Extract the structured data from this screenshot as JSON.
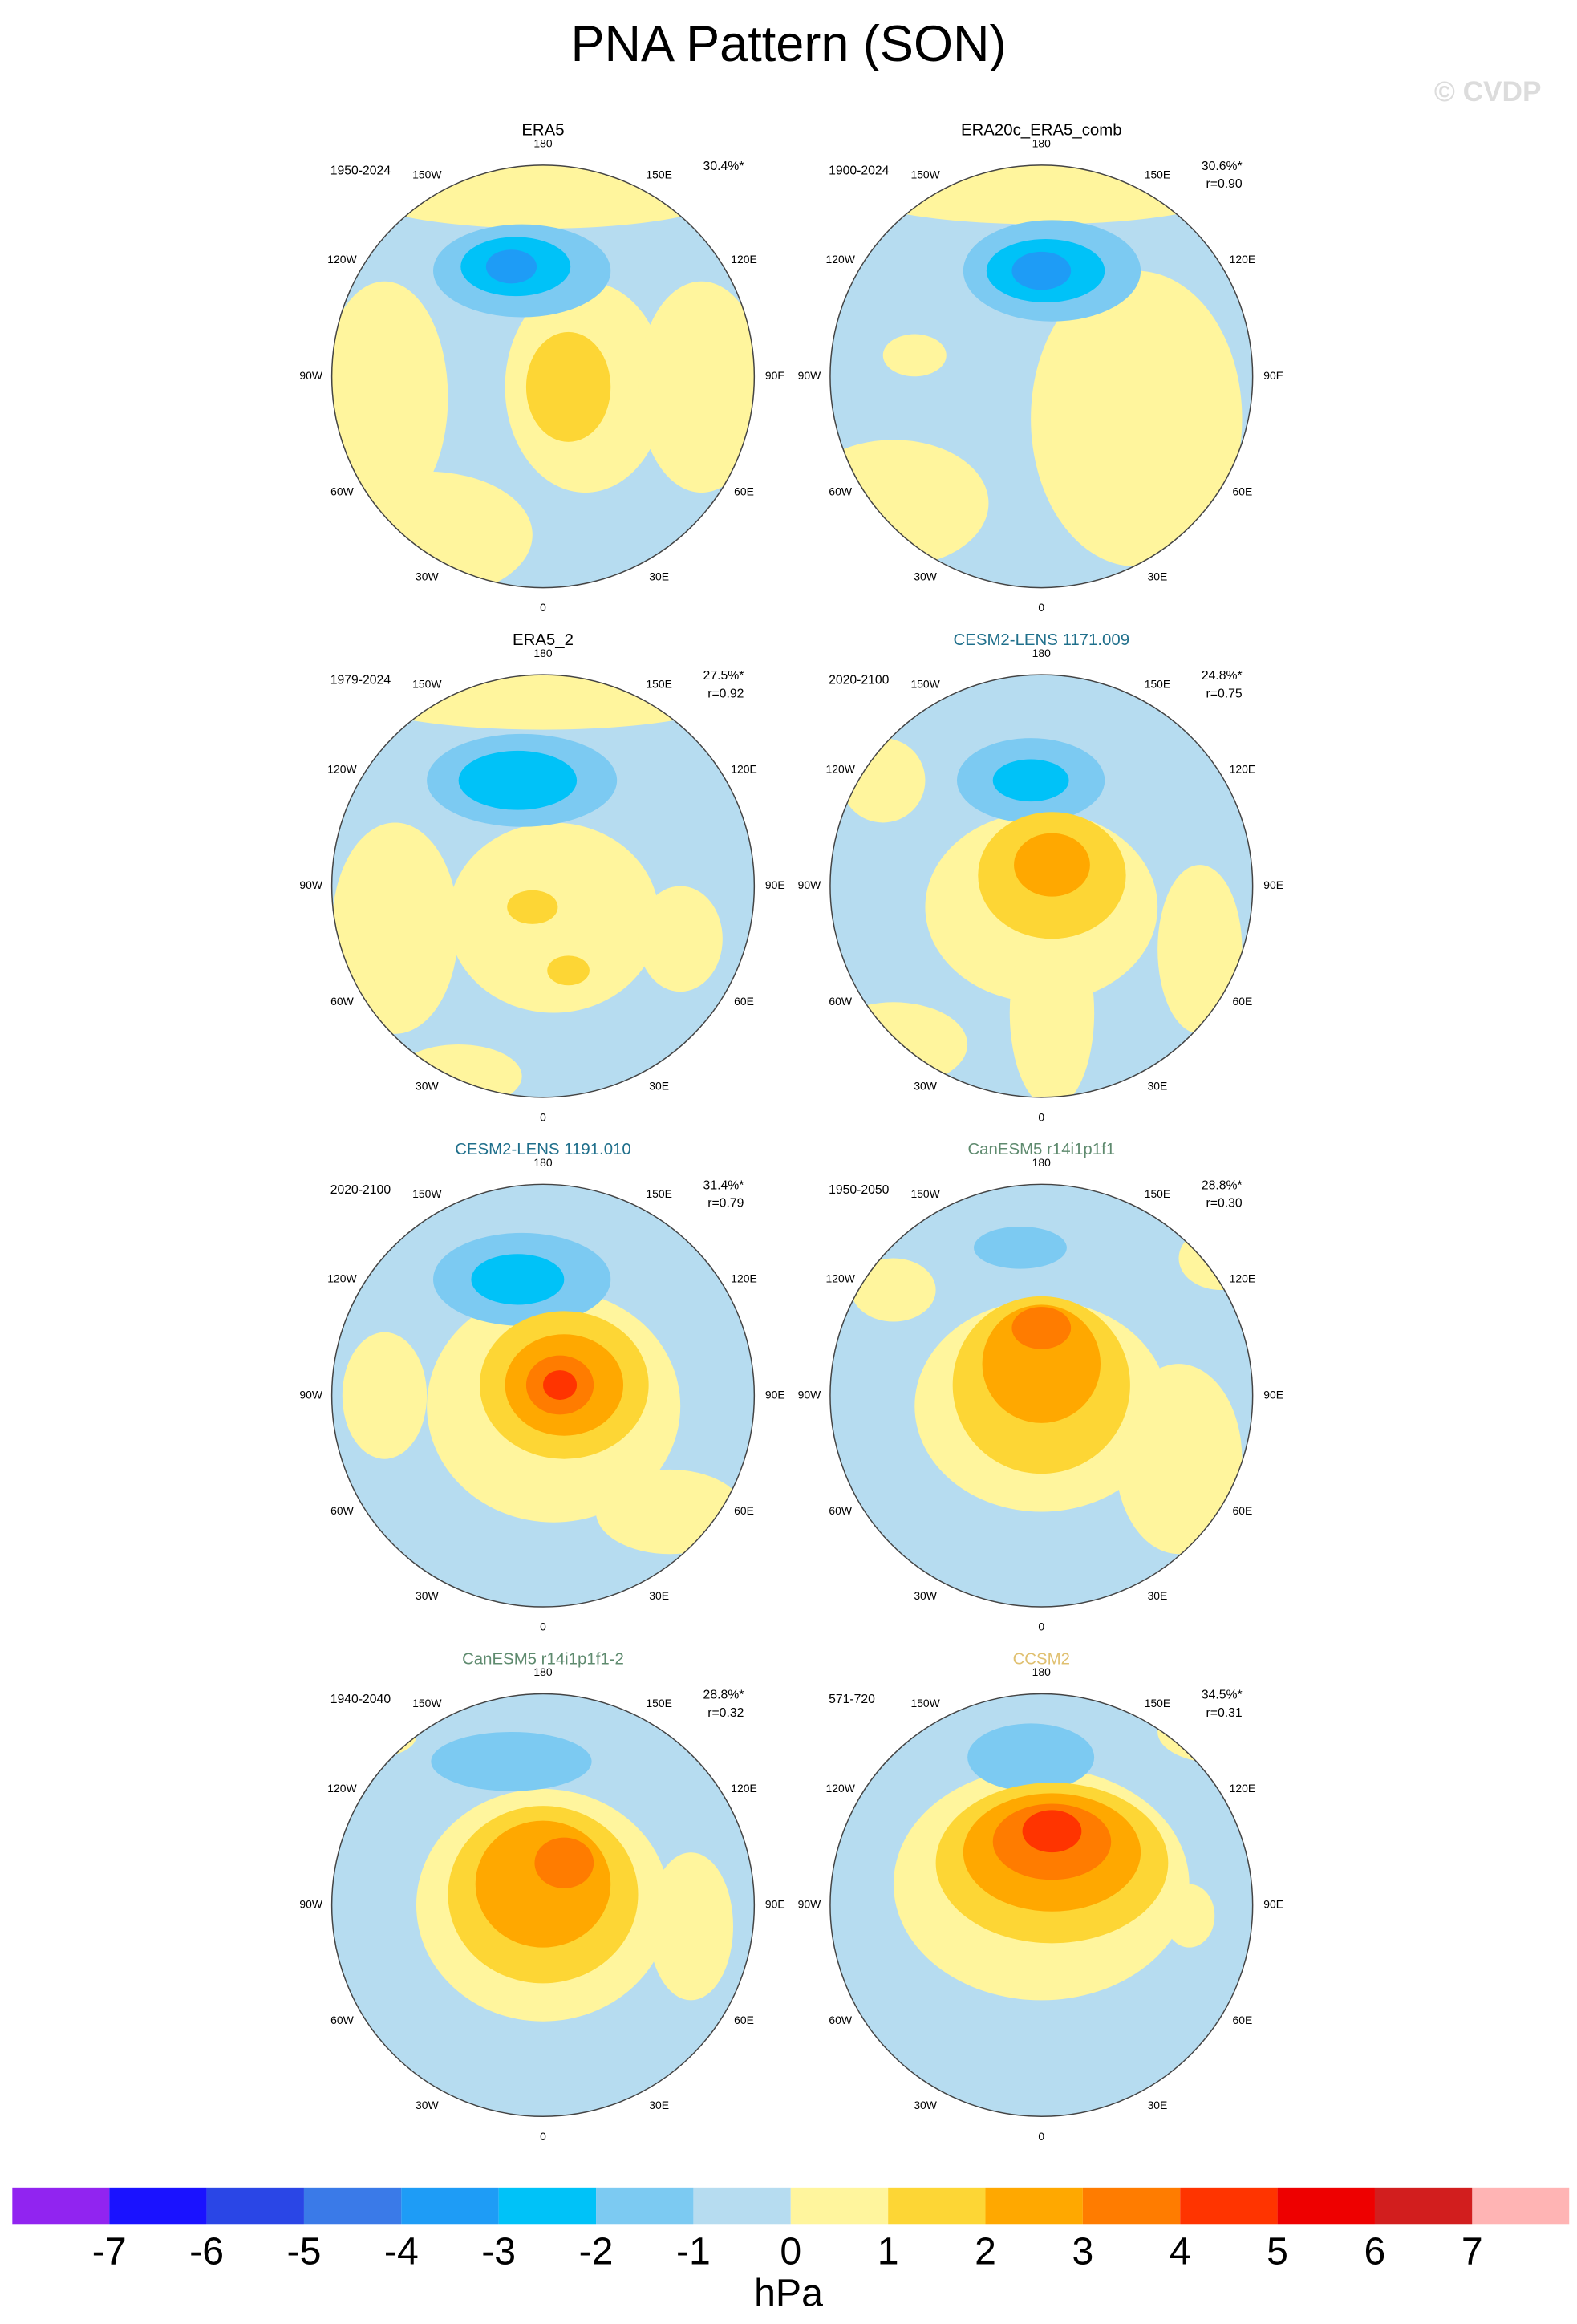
{
  "title": "PNA Pattern (SON)",
  "credit": "© CVDP",
  "lon_labels": [
    "180",
    "150E",
    "120E",
    "90E",
    "60E",
    "30E",
    "0",
    "30W",
    "60W",
    "90W",
    "120W",
    "150W"
  ],
  "panels": [
    {
      "title": "ERA5",
      "title_color": "#000000",
      "period": "1950-2024",
      "pct": "30.4%*"
    },
    {
      "title": "ERA20c_ERA5_comb",
      "title_color": "#000000",
      "period": "1900-2024",
      "pct": "30.6%*",
      "r": "r=0.90"
    },
    {
      "title": "ERA5_2",
      "title_color": "#000000",
      "period": "1979-2024",
      "pct": "27.5%*",
      "r": "r=0.92"
    },
    {
      "title": "CESM2-LENS 1171.009",
      "title_color": "#1f6f8b",
      "period": "2020-2100",
      "pct": "24.8%*",
      "r": "r=0.75"
    },
    {
      "title": "CESM2-LENS 1191.010",
      "title_color": "#1f6f8b",
      "period": "2020-2100",
      "pct": "31.4%*",
      "r": "r=0.79"
    },
    {
      "title": "CanESM5 r14i1p1f1",
      "title_color": "#5e8a6e",
      "period": "1950-2050",
      "pct": "28.8%*",
      "r": "r=0.30"
    },
    {
      "title": "CanESM5 r14i1p1f1-2",
      "title_color": "#5e8a6e",
      "period": "1940-2040",
      "pct": "28.8%*",
      "r": "r=0.32"
    },
    {
      "title": "CCSM2",
      "title_color": "#e0c070",
      "period": "571-720",
      "pct": "34.5%*",
      "r": "r=0.31"
    }
  ],
  "colorbar": {
    "colors": [
      "#9124f0",
      "#1a12ff",
      "#2a46e6",
      "#3a7ae8",
      "#1e9cf6",
      "#00c2f8",
      "#7ccaf2",
      "#b6dcf0",
      "#fff59d",
      "#fdd635",
      "#ffa800",
      "#ff7c00",
      "#ff3400",
      "#ee0000",
      "#d21e1e",
      "#ffb4b4"
    ],
    "lim": [
      -8,
      8
    ],
    "ticks": [
      -7,
      -6,
      -5,
      -4,
      -3,
      -2,
      -1,
      0,
      1,
      2,
      3,
      4,
      5,
      6,
      7
    ],
    "unit": "hPa"
  }
}
